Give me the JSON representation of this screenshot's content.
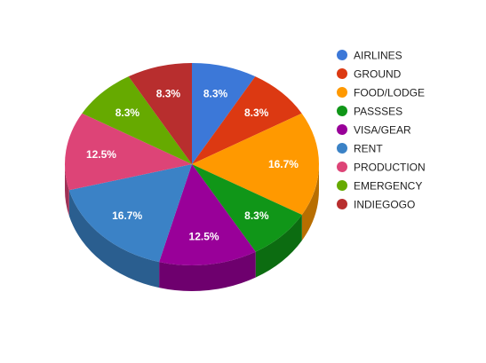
{
  "chart_data": {
    "type": "pie",
    "style": "3d",
    "legend_position": "right",
    "slices": [
      {
        "name": "AIRLINES",
        "value": 8.3,
        "label": "8.3%",
        "color": "#3c78d8"
      },
      {
        "name": "GROUND",
        "value": 8.3,
        "label": "8.3%",
        "color": "#dc3912"
      },
      {
        "name": "FOOD/LODGE",
        "value": 16.7,
        "label": "16.7%",
        "color": "#ff9900"
      },
      {
        "name": "PASSSES",
        "value": 8.3,
        "label": "8.3%",
        "color": "#109618"
      },
      {
        "name": "VISA/GEAR",
        "value": 12.5,
        "label": "12.5%",
        "color": "#990099"
      },
      {
        "name": "RENT",
        "value": 16.7,
        "label": "16.7%",
        "color": "#3b82c6"
      },
      {
        "name": "PRODUCTION",
        "value": 12.5,
        "label": "12.5%",
        "color": "#dd4477"
      },
      {
        "name": "EMERGENCY",
        "value": 8.3,
        "label": "8.3%",
        "color": "#66aa00"
      },
      {
        "name": "INDIEGOGO",
        "value": 8.3,
        "label": "8.3%",
        "color": "#b82e2e"
      }
    ]
  }
}
